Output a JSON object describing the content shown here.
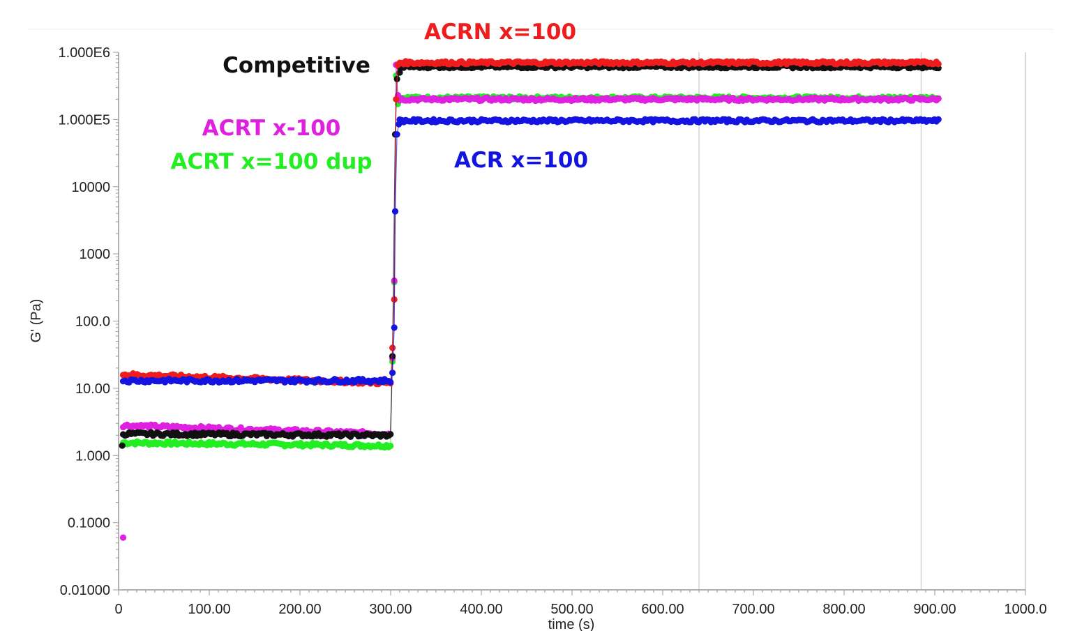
{
  "chart_data": {
    "type": "scatter",
    "xlabel": "time (s)",
    "ylabel": "G' (Pa)",
    "xlim": [
      0,
      1000
    ],
    "ylim": [
      0.01,
      1000000
    ],
    "yscale": "log",
    "grid": "vertical lines at 640 and 885",
    "x_ticks": [
      {
        "value": 0,
        "label": "0"
      },
      {
        "value": 100,
        "label": "100.00"
      },
      {
        "value": 200,
        "label": "200.00"
      },
      {
        "value": 300,
        "label": "300.00"
      },
      {
        "value": 400,
        "label": "400.00"
      },
      {
        "value": 500,
        "label": "500.00"
      },
      {
        "value": 600,
        "label": "600.00"
      },
      {
        "value": 700,
        "label": "700.00"
      },
      {
        "value": 800,
        "label": "800.00"
      },
      {
        "value": 900,
        "label": "900.00"
      },
      {
        "value": 1000,
        "label": "1000.0"
      }
    ],
    "y_ticks": [
      {
        "value": 1000000,
        "label": "1.000E6"
      },
      {
        "value": 100000,
        "label": "1.000E5"
      },
      {
        "value": 10000,
        "label": "10000"
      },
      {
        "value": 1000,
        "label": "1000"
      },
      {
        "value": 100,
        "label": "100.0"
      },
      {
        "value": 10,
        "label": "10.00"
      },
      {
        "value": 1,
        "label": "1.000"
      },
      {
        "value": 0.1,
        "label": "0.1000"
      },
      {
        "value": 0.01,
        "label": "0.01000"
      }
    ],
    "series": [
      {
        "name": "ACRN x=100",
        "color": "#ee1c1c",
        "pre_start": 16,
        "pre_end": 12,
        "post": 700000,
        "transition": [
          [
            302,
            40
          ],
          [
            304,
            210
          ],
          [
            306,
            200000
          ],
          [
            308,
            650000
          ]
        ]
      },
      {
        "name": "Competitive",
        "color": "#111111",
        "pre_start": 2.1,
        "pre_end": 2.0,
        "post": 610000,
        "transition": [
          [
            4,
            1.4
          ],
          [
            302,
            30
          ],
          [
            305,
            60000
          ],
          [
            307,
            400000
          ],
          [
            310,
            500000
          ]
        ]
      },
      {
        "name": "ACRT x-100",
        "color": "#e020e0",
        "pre_start": 2.8,
        "pre_end": 2.1,
        "post": 200000,
        "transition": [
          [
            5,
            0.06
          ],
          [
            302,
            28
          ],
          [
            304,
            400
          ],
          [
            306,
            650000
          ],
          [
            308,
            230000
          ]
        ]
      },
      {
        "name": "ACRT x=100 dup",
        "color": "#22ee22",
        "pre_start": 1.55,
        "pre_end": 1.4,
        "post": 210000,
        "transition": [
          [
            302,
            25
          ],
          [
            304,
            380
          ],
          [
            306,
            450000
          ],
          [
            308,
            170000
          ]
        ]
      },
      {
        "name": "ACR x=100",
        "color": "#1414e0",
        "pre_start": 13,
        "pre_end": 13,
        "post": 96000,
        "transition": [
          [
            302,
            17
          ],
          [
            304,
            80
          ],
          [
            305,
            4300
          ],
          [
            307,
            60000
          ],
          [
            309,
            85000
          ]
        ]
      }
    ]
  }
}
